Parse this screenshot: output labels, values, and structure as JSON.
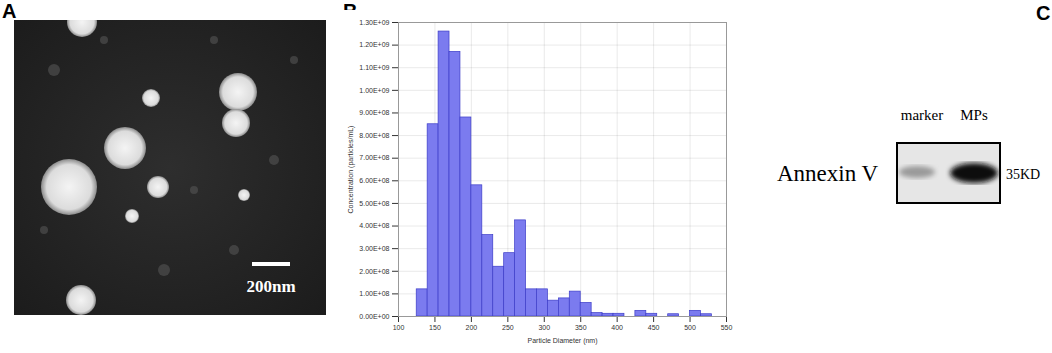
{
  "image_panel": {
    "label": "A",
    "scale_bar": "200nm"
  },
  "chart_data": {
    "label": "B",
    "type": "histogram",
    "x_label": "Particle Diameter (nm)",
    "y_label": "Concentration (particles/mL)",
    "bins": [
      125,
      140,
      155,
      170,
      185,
      200,
      215,
      230,
      245,
      260,
      275,
      290,
      305,
      320,
      335,
      350,
      365,
      380,
      395,
      410,
      425,
      440,
      455,
      470,
      485,
      500,
      515,
      530
    ],
    "values": [
      120000000,
      850000000,
      1260000000,
      1170000000,
      880000000,
      580000000,
      360000000,
      220000000,
      280000000,
      425000000,
      120000000,
      120000000,
      70000000,
      80000000,
      110000000,
      60000000,
      15000000,
      12000000,
      12000000,
      0,
      25000000,
      12000000,
      0,
      10000000,
      0,
      25000000,
      10000000
    ],
    "color": "#7b7bef",
    "xlim": [
      100,
      550
    ],
    "xticks": [
      100,
      150,
      200,
      250,
      300,
      350,
      400,
      450,
      500,
      550
    ],
    "ylim": [
      0,
      1300000000
    ],
    "yticks": [
      {
        "value": 0,
        "label": "0.00E+00"
      },
      {
        "value": 100000000,
        "label": "1.00E+08"
      },
      {
        "value": 200000000,
        "label": "2.00E+08"
      },
      {
        "value": 300000000,
        "label": "3.00E+08"
      },
      {
        "value": 400000000,
        "label": "4.00E+08"
      },
      {
        "value": 500000000,
        "label": "5.00E+08"
      },
      {
        "value": 600000000,
        "label": "6.00E+08"
      },
      {
        "value": 700000000,
        "label": "7.00E+08"
      },
      {
        "value": 800000000,
        "label": "8.00E+08"
      },
      {
        "value": 900000000,
        "label": "9.00E+08"
      },
      {
        "value": 1000000000,
        "label": "1.00E+09"
      },
      {
        "value": 1100000000,
        "label": "1.10E+09"
      },
      {
        "value": 1200000000,
        "label": "1.20E+09"
      },
      {
        "value": 1300000000,
        "label": "1.30E+09"
      }
    ],
    "grid": true
  },
  "blot_panel": {
    "label": "C",
    "protein": "Annexin V",
    "lanes": [
      "marker",
      "MPs"
    ],
    "size": "35KD"
  }
}
